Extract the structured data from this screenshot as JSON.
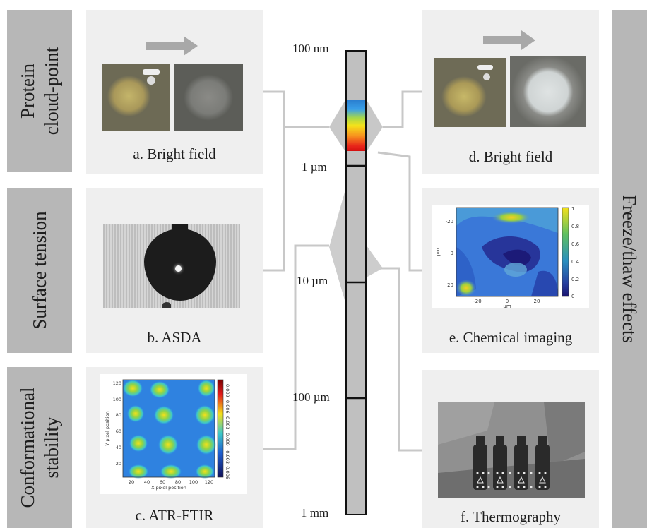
{
  "categories": {
    "left": [
      {
        "label": "Protein\ncloud-point"
      },
      {
        "label": "Surface tension"
      },
      {
        "label": "Conformational\nstability"
      }
    ],
    "right": {
      "label": "Freeze/thaw effects"
    }
  },
  "panels": {
    "a": {
      "caption": "a. Bright field"
    },
    "b": {
      "caption": "b. ASDA"
    },
    "c": {
      "caption": "c. ATR-FTIR",
      "ylabel": "Y pixel position",
      "xlabel": "X pixel position",
      "xticks": [
        "20",
        "40",
        "60",
        "80",
        "100",
        "120"
      ],
      "yticks": [
        "120",
        "100",
        "80",
        "60",
        "40",
        "20"
      ],
      "cbticks": [
        "0.009",
        "0.006",
        "0.003",
        "0.000",
        "-0.003",
        "-0.006"
      ]
    },
    "d": {
      "caption": "d. Bright field"
    },
    "e": {
      "caption": "e. Chemical imaging",
      "ylabel": "µm",
      "xlabel": "µm",
      "xticks": [
        "-20",
        "0",
        "20"
      ],
      "yticks": [
        "-20",
        "0",
        "20"
      ],
      "cbticks": [
        "1",
        "0.8",
        "0.6",
        "0.4",
        "0.2",
        "0"
      ]
    },
    "f": {
      "caption": "f. Thermography"
    }
  },
  "scale": {
    "labels": [
      "100 nm",
      "1 µm",
      "10 µm",
      "100 µm",
      "1 mm"
    ]
  }
}
